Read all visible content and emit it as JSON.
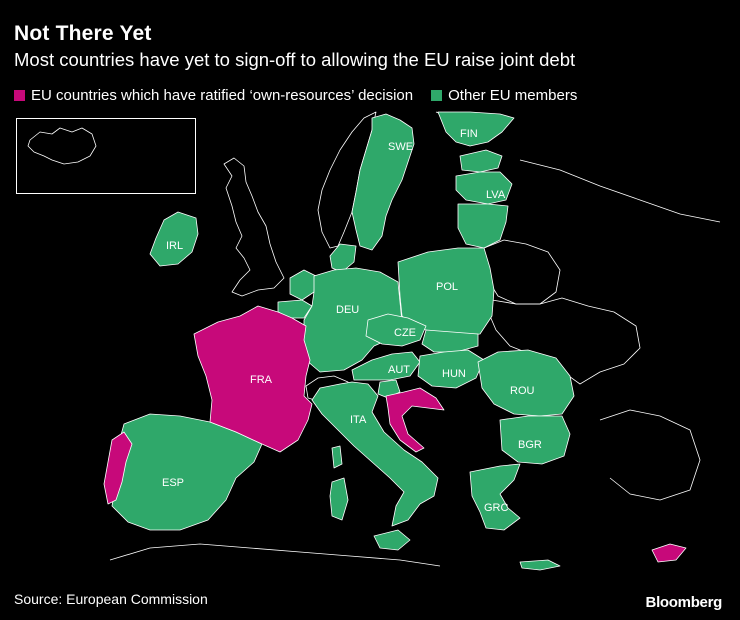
{
  "title": "Not There Yet",
  "subtitle": "Most countries have yet to sign-off to allowing the EU raise joint debt",
  "legend": {
    "ratified": "EU countries which have ratified ‘own-resources’ decision",
    "other": "Other EU members"
  },
  "colors": {
    "ratified": "#c7097a",
    "other": "#2fa86a",
    "background": "#000000",
    "border": "#ffffff"
  },
  "countries": {
    "SWE": "SWE",
    "FIN": "FIN",
    "LVA": "LVA",
    "IRL": "IRL",
    "DEU": "DEU",
    "POL": "POL",
    "CZE": "CZE",
    "AUT": "AUT",
    "HUN": "HUN",
    "FRA": "FRA",
    "ROU": "ROU",
    "ITA": "ITA",
    "BGR": "BGR",
    "ESP": "ESP",
    "GRC": "GRC"
  },
  "source": "Source: European Commission",
  "brand": "Bloomberg"
}
